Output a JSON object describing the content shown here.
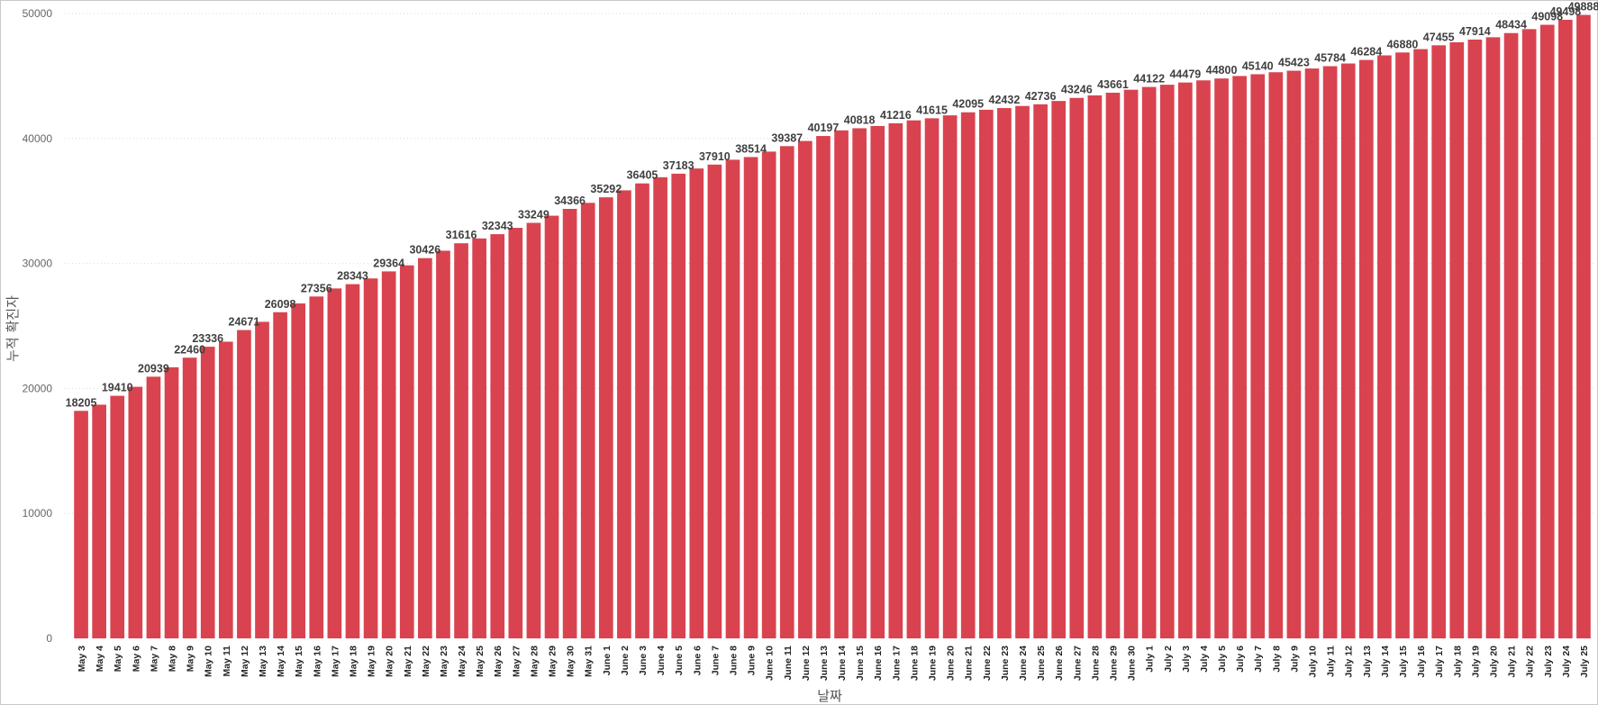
{
  "chart_data": {
    "type": "bar",
    "title": "",
    "xlabel": "날짜",
    "ylabel": "누적 확진자",
    "ylim": [
      0,
      50000
    ],
    "yticks": [
      0,
      10000,
      20000,
      30000,
      40000,
      50000
    ],
    "grid": true,
    "legend": "none",
    "bar_color": "#d9434f",
    "categories": [
      "May 3",
      "May 4",
      "May 5",
      "May 6",
      "May 7",
      "May 8",
      "May 9",
      "May 10",
      "May 11",
      "May 12",
      "May 13",
      "May 14",
      "May 15",
      "May 16",
      "May 17",
      "May 18",
      "May 19",
      "May 20",
      "May 21",
      "May 22",
      "May 23",
      "May 24",
      "May 25",
      "May 26",
      "May 27",
      "May 28",
      "May 29",
      "May 30",
      "May 31",
      "June 1",
      "June 2",
      "June 3",
      "June 4",
      "June 5",
      "June 6",
      "June 7",
      "June 8",
      "June 9",
      "June 10",
      "June 11",
      "June 12",
      "June 13",
      "June 14",
      "June 15",
      "June 16",
      "June 17",
      "June 18",
      "June 19",
      "June 20",
      "June 21",
      "June 22",
      "June 23",
      "June 24",
      "June 25",
      "June 26",
      "June 27",
      "June 28",
      "June 29",
      "June 30",
      "July 1",
      "July 2",
      "July 3",
      "July 4",
      "July 5",
      "July 6",
      "July 7",
      "July 8",
      "July 9",
      "July 10",
      "July 11",
      "July 12",
      "July 13",
      "July 14",
      "July 15",
      "July 16",
      "July 17",
      "July 18",
      "July 19",
      "July 20",
      "July 21",
      "July 22",
      "July 23",
      "July 24",
      "July 25"
    ],
    "values": [
      18205,
      18700,
      19410,
      20130,
      20939,
      21690,
      22460,
      23336,
      23740,
      24671,
      25330,
      26098,
      26800,
      27356,
      28000,
      28343,
      28800,
      29364,
      29850,
      30426,
      31020,
      31616,
      32000,
      32343,
      32850,
      33249,
      33820,
      34366,
      34850,
      35292,
      35850,
      36405,
      36900,
      37183,
      37600,
      37910,
      38300,
      38514,
      38950,
      39387,
      39800,
      40197,
      40650,
      40818,
      41000,
      41216,
      41450,
      41615,
      41850,
      42095,
      42300,
      42432,
      42600,
      42736,
      43000,
      43246,
      43450,
      43661,
      43900,
      44122,
      44300,
      44479,
      44650,
      44800,
      45000,
      45140,
      45300,
      45423,
      45600,
      45784,
      46000,
      46284,
      46650,
      46880,
      47150,
      47455,
      47700,
      47914,
      48100,
      48434,
      48750,
      49098,
      49498,
      49888
    ],
    "data_labels": [
      {
        "index": 0,
        "text": "18205"
      },
      {
        "index": 2,
        "text": "19410"
      },
      {
        "index": 4,
        "text": "20939"
      },
      {
        "index": 6,
        "text": "22460"
      },
      {
        "index": 7,
        "text": "23336"
      },
      {
        "index": 9,
        "text": "24671"
      },
      {
        "index": 11,
        "text": "26098"
      },
      {
        "index": 13,
        "text": "27356"
      },
      {
        "index": 15,
        "text": "28343"
      },
      {
        "index": 17,
        "text": "29364"
      },
      {
        "index": 19,
        "text": "30426"
      },
      {
        "index": 21,
        "text": "31616"
      },
      {
        "index": 23,
        "text": "32343"
      },
      {
        "index": 25,
        "text": "33249"
      },
      {
        "index": 27,
        "text": "34366"
      },
      {
        "index": 29,
        "text": "35292"
      },
      {
        "index": 31,
        "text": "36405"
      },
      {
        "index": 33,
        "text": "37183"
      },
      {
        "index": 35,
        "text": "37910"
      },
      {
        "index": 37,
        "text": "38514"
      },
      {
        "index": 39,
        "text": "39387"
      },
      {
        "index": 41,
        "text": "40197"
      },
      {
        "index": 43,
        "text": "40818"
      },
      {
        "index": 45,
        "text": "41216"
      },
      {
        "index": 47,
        "text": "41615"
      },
      {
        "index": 49,
        "text": "42095"
      },
      {
        "index": 51,
        "text": "42432"
      },
      {
        "index": 53,
        "text": "42736"
      },
      {
        "index": 55,
        "text": "43246"
      },
      {
        "index": 57,
        "text": "43661"
      },
      {
        "index": 59,
        "text": "44122"
      },
      {
        "index": 61,
        "text": "44479"
      },
      {
        "index": 63,
        "text": "44800"
      },
      {
        "index": 65,
        "text": "45140"
      },
      {
        "index": 67,
        "text": "45423"
      },
      {
        "index": 69,
        "text": "45784"
      },
      {
        "index": 71,
        "text": "46284"
      },
      {
        "index": 73,
        "text": "46880"
      },
      {
        "index": 75,
        "text": "47455"
      },
      {
        "index": 77,
        "text": "47914"
      },
      {
        "index": 79,
        "text": "48434"
      },
      {
        "index": 81,
        "text": "49098"
      },
      {
        "index": 82,
        "text": "49498"
      },
      {
        "index": 83,
        "text": "49888"
      }
    ]
  }
}
